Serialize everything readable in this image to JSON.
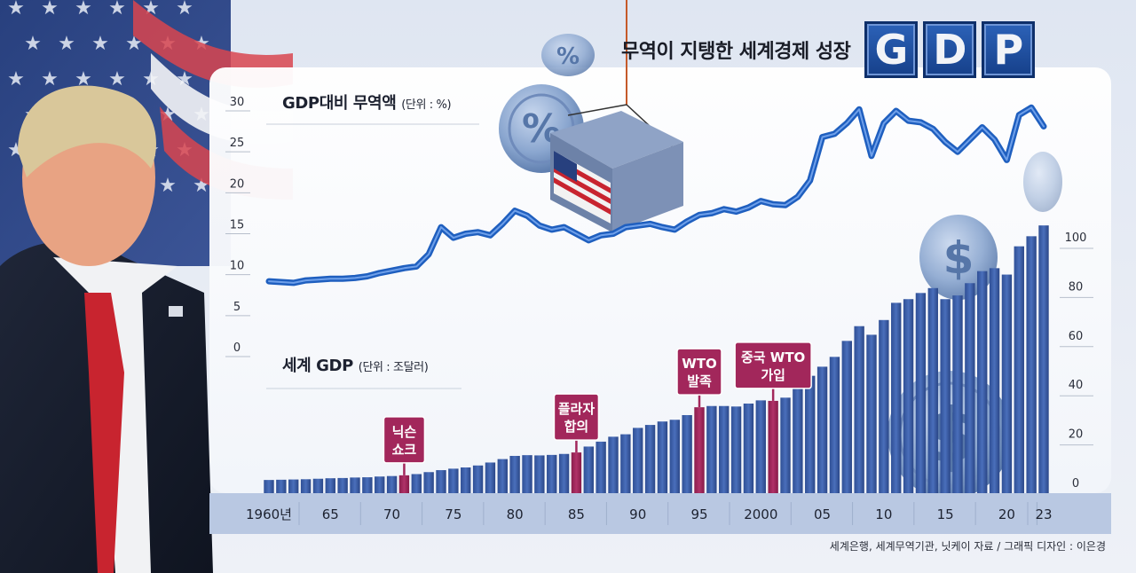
{
  "title": {
    "text": "무역이 지탱한 세계경제 성장",
    "badges": [
      "G",
      "D",
      "P"
    ]
  },
  "source": "세계은행, 세계무역기관, 닛케이 자료 / 그래픽 디자인 : 이은경",
  "colors": {
    "line": "#1f5fbf",
    "bar": "#3b5fa8",
    "highlight_bar": "#a2275b",
    "callout": "#a2275b"
  },
  "chart_data": [
    {
      "type": "line",
      "title": "GDP대비 무역액",
      "unit": "(단위 : %)",
      "ylim": [
        0,
        30
      ],
      "y_ticks": [
        "0",
        "5",
        "10",
        "15",
        "20",
        "25",
        "30"
      ],
      "x": [
        1960,
        1961,
        1962,
        1963,
        1964,
        1965,
        1966,
        1967,
        1968,
        1969,
        1970,
        1971,
        1972,
        1973,
        1974,
        1975,
        1976,
        1977,
        1978,
        1979,
        1980,
        1981,
        1982,
        1983,
        1984,
        1985,
        1986,
        1987,
        1988,
        1989,
        1990,
        1991,
        1992,
        1993,
        1994,
        1995,
        1996,
        1997,
        1998,
        1999,
        2000,
        2001,
        2002,
        2003,
        2004,
        2005,
        2006,
        2007,
        2008,
        2009,
        2010,
        2011,
        2012,
        2013,
        2014,
        2015,
        2016,
        2017,
        2018,
        2019,
        2020,
        2021,
        2022,
        2023
      ],
      "values": [
        9.2,
        9.1,
        9.0,
        9.3,
        9.4,
        9.5,
        9.5,
        9.6,
        9.8,
        10.2,
        10.5,
        10.8,
        11.0,
        12.5,
        15.8,
        14.5,
        15.0,
        15.2,
        14.8,
        16.2,
        17.8,
        17.2,
        16.0,
        15.5,
        15.8,
        15.0,
        14.2,
        14.8,
        15.0,
        15.8,
        16.0,
        16.2,
        15.8,
        15.5,
        16.5,
        17.3,
        17.5,
        18.0,
        17.7,
        18.2,
        19.0,
        18.6,
        18.5,
        19.5,
        21.5,
        26.8,
        27.2,
        28.5,
        30.2,
        24.5,
        28.5,
        30.0,
        28.8,
        28.6,
        27.8,
        26.2,
        25.0,
        26.5,
        28.0,
        26.5,
        24.0,
        29.5,
        30.4,
        28.1
      ]
    },
    {
      "type": "bar",
      "title": "세계 GDP",
      "unit": "(단위 : 조달러)",
      "ylim": [
        0,
        100
      ],
      "y_ticks": [
        "0",
        "20",
        "40",
        "60",
        "80",
        "100"
      ],
      "x": [
        1960,
        1961,
        1962,
        1963,
        1964,
        1965,
        1966,
        1967,
        1968,
        1969,
        1970,
        1971,
        1972,
        1973,
        1974,
        1975,
        1976,
        1977,
        1978,
        1979,
        1980,
        1981,
        1982,
        1983,
        1984,
        1985,
        1986,
        1987,
        1988,
        1989,
        1990,
        1991,
        1992,
        1993,
        1994,
        1995,
        1996,
        1997,
        1998,
        1999,
        2000,
        2001,
        2002,
        2003,
        2004,
        2005,
        2006,
        2007,
        2008,
        2009,
        2010,
        2011,
        2012,
        2013,
        2014,
        2015,
        2016,
        2017,
        2018,
        2019,
        2020,
        2021,
        2022,
        2023
      ],
      "values": [
        1.4,
        1.5,
        1.6,
        1.7,
        1.9,
        2.1,
        2.2,
        2.4,
        2.5,
        2.8,
        3.0,
        3.3,
        3.8,
        4.6,
        5.4,
        6.0,
        6.5,
        7.3,
        8.5,
        9.9,
        11.2,
        11.5,
        11.4,
        11.6,
        12.0,
        12.6,
        15.0,
        17.0,
        19.0,
        20.0,
        22.6,
        23.8,
        25.2,
        25.9,
        27.8,
        31.0,
        31.5,
        31.5,
        31.3,
        32.5,
        33.8,
        33.6,
        34.9,
        39.0,
        43.8,
        47.5,
        51.5,
        58.0,
        64.0,
        60.5,
        66.5,
        73.5,
        75.0,
        77.5,
        79.5,
        75.0,
        76.5,
        81.5,
        86.4,
        87.6,
        85.0,
        96.5,
        100.6,
        105.0
      ],
      "highlights": [
        {
          "year": 1971,
          "label": "닉슨 쇼크",
          "lines": [
            "닉슨",
            "쇼크"
          ]
        },
        {
          "year": 1985,
          "label": "플라자 합의",
          "lines": [
            "플라자",
            "합의"
          ]
        },
        {
          "year": 1995,
          "label": "WTO 발족",
          "lines": [
            "WTO",
            "발족"
          ]
        },
        {
          "year": 2001,
          "label": "중국 WTO 가입",
          "lines": [
            "중국 WTO",
            "가입"
          ]
        }
      ]
    }
  ],
  "x_axis_labels": [
    {
      "year": 1960,
      "text": "1960년"
    },
    {
      "year": 1965,
      "text": "65"
    },
    {
      "year": 1970,
      "text": "70"
    },
    {
      "year": 1975,
      "text": "75"
    },
    {
      "year": 1980,
      "text": "80"
    },
    {
      "year": 1985,
      "text": "85"
    },
    {
      "year": 1990,
      "text": "90"
    },
    {
      "year": 1995,
      "text": "95"
    },
    {
      "year": 2000,
      "text": "2000"
    },
    {
      "year": 2005,
      "text": "05"
    },
    {
      "year": 2010,
      "text": "10"
    },
    {
      "year": 2015,
      "text": "15"
    },
    {
      "year": 2020,
      "text": "20"
    },
    {
      "year": 2023,
      "text": "23"
    }
  ],
  "decor": {
    "photo_subject": "person-photo",
    "icons": [
      "percent-coin-icon",
      "dollar-coin-icon",
      "container-icon",
      "us-flag-icon"
    ]
  }
}
